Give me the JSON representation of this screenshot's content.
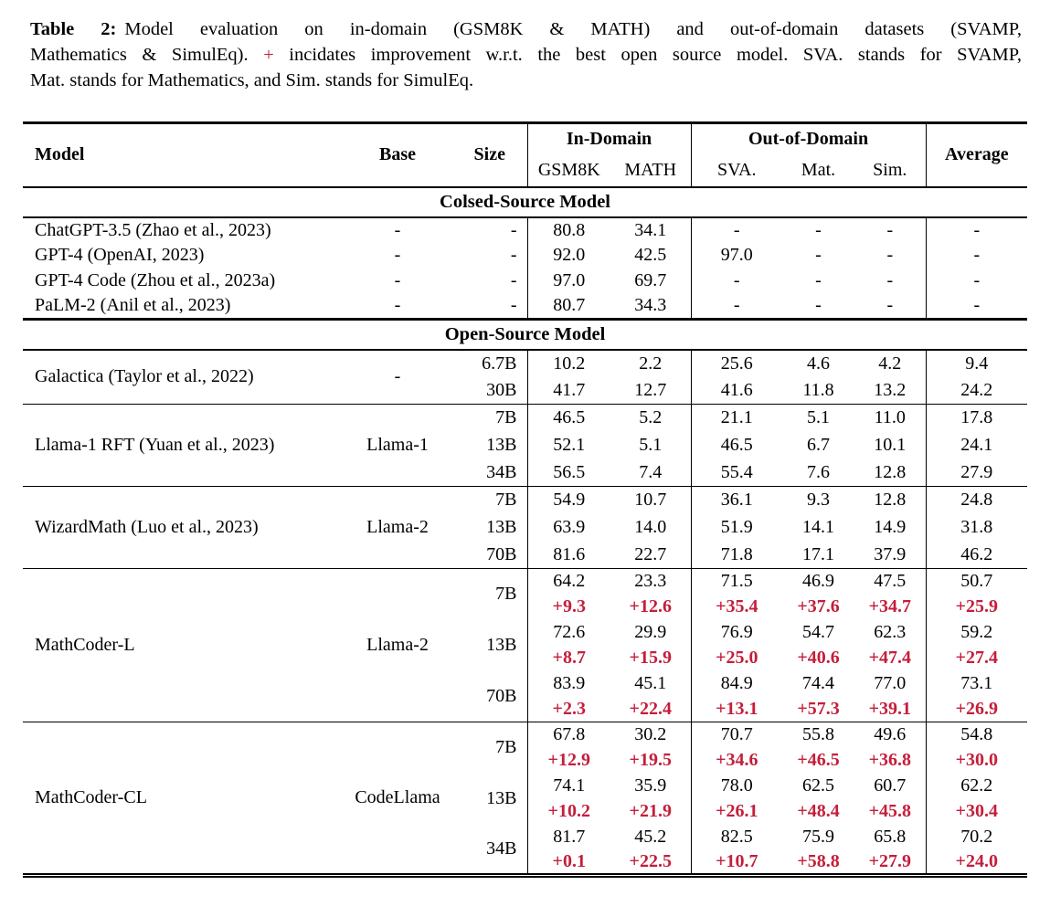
{
  "colors": {
    "accent_red": "#c41e3a",
    "text": "#000000",
    "background": "#ffffff"
  },
  "caption": {
    "label": "Table 2:",
    "line1": "Model evaluation on in-domain (GSM8K & MATH) and out-of-domain datasets (SVAMP,",
    "line2_pre": "Mathematics & SimulEq). ",
    "plus": "+",
    "line2_post": " incidates improvement w.r.t. the best open source model. SVA. stands for SVAMP,",
    "line3": "Mat. stands for Mathematics, and Sim. stands for SimulEq."
  },
  "table": {
    "header": {
      "model": "Model",
      "base": "Base",
      "size": "Size",
      "in_domain": "In-Domain",
      "out_of_domain": "Out-of-Domain",
      "average": "Average",
      "sub_columns": [
        "GSM8K",
        "MATH",
        "SVA.",
        "Mat.",
        "Sim."
      ]
    },
    "sections": [
      {
        "title": "Colsed-Source Model",
        "blocks": [
          {
            "models": [
              {
                "model": "ChatGPT-3.5 (Zhao et al., 2023)",
                "base": "-",
                "rows": [
                  {
                    "size": "-",
                    "values": [
                      "80.8",
                      "34.1",
                      "-",
                      "-",
                      "-",
                      "-"
                    ]
                  }
                ]
              },
              {
                "model": "GPT-4 (OpenAI, 2023)",
                "base": "-",
                "rows": [
                  {
                    "size": "-",
                    "values": [
                      "92.0",
                      "42.5",
                      "97.0",
                      "-",
                      "-",
                      "-"
                    ]
                  }
                ]
              },
              {
                "model": "GPT-4 Code (Zhou et al., 2023a)",
                "base": "-",
                "rows": [
                  {
                    "size": "-",
                    "values": [
                      "97.0",
                      "69.7",
                      "-",
                      "-",
                      "-",
                      "-"
                    ]
                  }
                ]
              },
              {
                "model": "PaLM-2 (Anil et al., 2023)",
                "base": "-",
                "rows": [
                  {
                    "size": "-",
                    "values": [
                      "80.7",
                      "34.3",
                      "-",
                      "-",
                      "-",
                      "-"
                    ]
                  }
                ]
              }
            ]
          }
        ]
      },
      {
        "title": "Open-Source Model",
        "blocks": [
          {
            "models": [
              {
                "model": "Galactica (Taylor et al., 2022)",
                "base": "-",
                "rows": [
                  {
                    "size": "6.7B",
                    "values": [
                      "10.2",
                      "2.2",
                      "25.6",
                      "4.6",
                      "4.2",
                      "9.4"
                    ]
                  },
                  {
                    "size": "30B",
                    "values": [
                      "41.7",
                      "12.7",
                      "41.6",
                      "11.8",
                      "13.2",
                      "24.2"
                    ]
                  }
                ]
              }
            ]
          },
          {
            "models": [
              {
                "model": "Llama-1 RFT (Yuan et al., 2023)",
                "base": "Llama-1",
                "rows": [
                  {
                    "size": "7B",
                    "values": [
                      "46.5",
                      "5.2",
                      "21.1",
                      "5.1",
                      "11.0",
                      "17.8"
                    ]
                  },
                  {
                    "size": "13B",
                    "values": [
                      "52.1",
                      "5.1",
                      "46.5",
                      "6.7",
                      "10.1",
                      "24.1"
                    ]
                  },
                  {
                    "size": "34B",
                    "values": [
                      "56.5",
                      "7.4",
                      "55.4",
                      "7.6",
                      "12.8",
                      "27.9"
                    ]
                  }
                ]
              }
            ]
          },
          {
            "models": [
              {
                "model": "WizardMath (Luo et al., 2023)",
                "base": "Llama-2",
                "rows": [
                  {
                    "size": "7B",
                    "values": [
                      "54.9",
                      "10.7",
                      "36.1",
                      "9.3",
                      "12.8",
                      "24.8"
                    ]
                  },
                  {
                    "size": "13B",
                    "values": [
                      "63.9",
                      "14.0",
                      "51.9",
                      "14.1",
                      "14.9",
                      "31.8"
                    ]
                  },
                  {
                    "size": "70B",
                    "values": [
                      "81.6",
                      "22.7",
                      "71.8",
                      "17.1",
                      "37.9",
                      "46.2"
                    ]
                  }
                ]
              }
            ]
          },
          {
            "models": [
              {
                "model": "MathCoder-L",
                "base": "Llama-2",
                "rows": [
                  {
                    "size": "7B",
                    "values": [
                      "64.2",
                      "23.3",
                      "71.5",
                      "46.9",
                      "47.5",
                      "50.7"
                    ],
                    "improvements": [
                      "+9.3",
                      "+12.6",
                      "+35.4",
                      "+37.6",
                      "+34.7",
                      "+25.9"
                    ]
                  },
                  {
                    "size": "13B",
                    "values": [
                      "72.6",
                      "29.9",
                      "76.9",
                      "54.7",
                      "62.3",
                      "59.2"
                    ],
                    "improvements": [
                      "+8.7",
                      "+15.9",
                      "+25.0",
                      "+40.6",
                      "+47.4",
                      "+27.4"
                    ]
                  },
                  {
                    "size": "70B",
                    "values": [
                      "83.9",
                      "45.1",
                      "84.9",
                      "74.4",
                      "77.0",
                      "73.1"
                    ],
                    "improvements": [
                      "+2.3",
                      "+22.4",
                      "+13.1",
                      "+57.3",
                      "+39.1",
                      "+26.9"
                    ]
                  }
                ]
              }
            ]
          },
          {
            "models": [
              {
                "model": "MathCoder-CL",
                "base": "CodeLlama",
                "rows": [
                  {
                    "size": "7B",
                    "values": [
                      "67.8",
                      "30.2",
                      "70.7",
                      "55.8",
                      "49.6",
                      "54.8"
                    ],
                    "improvements": [
                      "+12.9",
                      "+19.5",
                      "+34.6",
                      "+46.5",
                      "+36.8",
                      "+30.0"
                    ]
                  },
                  {
                    "size": "13B",
                    "values": [
                      "74.1",
                      "35.9",
                      "78.0",
                      "62.5",
                      "60.7",
                      "62.2"
                    ],
                    "improvements": [
                      "+10.2",
                      "+21.9",
                      "+26.1",
                      "+48.4",
                      "+45.8",
                      "+30.4"
                    ]
                  },
                  {
                    "size": "34B",
                    "values": [
                      "81.7",
                      "45.2",
                      "82.5",
                      "75.9",
                      "65.8",
                      "70.2"
                    ],
                    "improvements": [
                      "+0.1",
                      "+22.5",
                      "+10.7",
                      "+58.8",
                      "+27.9",
                      "+24.0"
                    ]
                  }
                ]
              }
            ]
          }
        ]
      }
    ]
  }
}
